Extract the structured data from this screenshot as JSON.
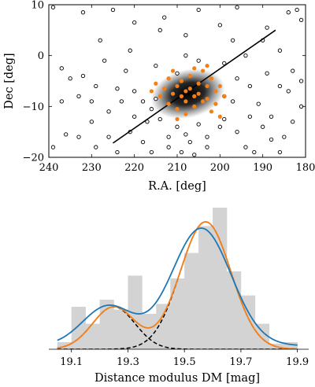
{
  "chart_data": [
    {
      "type": "scatter",
      "title": "",
      "xlabel": "R.A. [deg]",
      "ylabel": "Dec [deg]",
      "xlim": [
        240,
        180
      ],
      "ylim": [
        -20,
        10
      ],
      "x_inverted": true,
      "xticks": [
        240,
        230,
        220,
        210,
        200,
        190,
        180
      ],
      "xtick_labels": [
        "240",
        "230",
        "220",
        "210",
        "200",
        "190",
        "180"
      ],
      "yticks": [
        -20,
        -10,
        0,
        10
      ],
      "ytick_labels": [
        "−20",
        "−10",
        "0",
        "10"
      ],
      "grid": false,
      "colors": {
        "field": "#000000",
        "members": "#f47f17",
        "line": "#000000",
        "density": "#000000"
      },
      "density_blob": {
        "center": [
          207.5,
          -7.5
        ],
        "sigma_ra": 5.5,
        "sigma_dec": 2.5,
        "angle_deg": -14
      },
      "fit_line": {
        "x": [
          225,
          187
        ],
        "y": [
          -17.2,
          5
        ]
      },
      "series": [
        {
          "marker": "open-circle",
          "points": [
            [
              239,
              9.5
            ],
            [
              232,
              8.5
            ],
            [
              225,
              9
            ],
            [
              213,
              7.5
            ],
            [
              205,
              9
            ],
            [
              196,
              9.5
            ],
            [
              184,
              8.5
            ],
            [
              182,
              9
            ],
            [
              181,
              7
            ],
            [
              220,
              6.5
            ],
            [
              228,
              3
            ],
            [
              214,
              5
            ],
            [
              208,
              4
            ],
            [
              200,
              6
            ],
            [
              197,
              3
            ],
            [
              189,
              5.5
            ],
            [
              232,
              -4
            ],
            [
              237,
              -2.5
            ],
            [
              235,
              -4.5
            ],
            [
              222,
              -3
            ],
            [
              215,
              -2
            ],
            [
              208,
              0
            ],
            [
              205,
              -1
            ],
            [
              210,
              -3.5
            ],
            [
              199,
              -1.5
            ],
            [
              194,
              0
            ],
            [
              190,
              3
            ],
            [
              186,
              1
            ],
            [
              221,
              1
            ],
            [
              229,
              -6
            ],
            [
              224,
              -6.5
            ],
            [
              223,
              -9
            ],
            [
              226,
              -11
            ],
            [
              220,
              -12
            ],
            [
              230,
              -13
            ],
            [
              236,
              -15.5
            ],
            [
              233,
              -16
            ],
            [
              229,
              -18
            ],
            [
              226,
              -16
            ],
            [
              221,
              -15
            ],
            [
              217,
              -13
            ],
            [
              214,
              -12.5
            ],
            [
              210,
              -14
            ],
            [
              208,
              -15.5
            ],
            [
              205,
              -13.5
            ],
            [
              203,
              -16
            ],
            [
              200,
              -14
            ],
            [
              199,
              -12.5
            ],
            [
              196,
              -15
            ],
            [
              193,
              -12
            ],
            [
              191,
              -9.5
            ],
            [
              190,
              -14
            ],
            [
              188,
              -16.5
            ],
            [
              186,
              -19
            ],
            [
              185,
              -16
            ],
            [
              183,
              -13
            ],
            [
              181,
              -10
            ],
            [
              181,
              -5
            ],
            [
              183,
              -3
            ],
            [
              186,
              -6
            ],
            [
              189,
              -3.5
            ],
            [
              193,
              -6
            ],
            [
              196,
              -4.5
            ],
            [
              197,
              -9
            ],
            [
              199,
              -8
            ],
            [
              215,
              -8.5
            ],
            [
              216,
              -10.5
            ],
            [
              218,
              -9
            ],
            [
              220,
              -7
            ],
            [
              212,
              -18
            ],
            [
              209,
              -19
            ],
            [
              206,
              -19.5
            ],
            [
              203,
              -18
            ],
            [
              207,
              -17
            ],
            [
              212,
              -16
            ],
            [
              218,
              -17
            ],
            [
              216,
              -19
            ],
            [
              224,
              -19
            ],
            [
              230,
              -9
            ],
            [
              233,
              -8
            ],
            [
              227,
              -1
            ],
            [
              239,
              -18
            ],
            [
              194,
              -18
            ],
            [
              188,
              -12
            ],
            [
              184,
              -7
            ],
            [
              237,
              -9
            ],
            [
              192,
              -19
            ]
          ]
        },
        {
          "marker": "filled-circle",
          "points": [
            [
              215,
              -5.5
            ],
            [
              213,
              -6.5
            ],
            [
              212,
              -4.5
            ],
            [
              211,
              -7.5
            ],
            [
              210,
              -6
            ],
            [
              209,
              -8
            ],
            [
              209,
              -5
            ],
            [
              208,
              -7
            ],
            [
              208,
              -9
            ],
            [
              207,
              -4
            ],
            [
              207,
              -6.5
            ],
            [
              206,
              -8
            ],
            [
              206,
              -10
            ],
            [
              205,
              -5.5
            ],
            [
              205,
              -7.5
            ],
            [
              204,
              -3
            ],
            [
              204,
              -9
            ],
            [
              203,
              -6
            ],
            [
              203,
              -8.5
            ],
            [
              202,
              -4.5
            ],
            [
              202,
              -11
            ],
            [
              201,
              -7
            ],
            [
              201,
              -9.5
            ],
            [
              200,
              -6
            ],
            [
              200,
              -12
            ],
            [
              212,
              -9.5
            ],
            [
              210,
              -10.5
            ],
            [
              211,
              -3
            ],
            [
              214,
              -8
            ],
            [
              216,
              -7
            ],
            [
              206,
              -2.5
            ],
            [
              199,
              -8
            ],
            [
              203,
              -2
            ],
            [
              208,
              -11.5
            ],
            [
              210,
              -12.5
            ]
          ]
        }
      ]
    },
    {
      "type": "bar",
      "title": "",
      "xlabel": "Distance modulus DM [mag]",
      "ylabel": "",
      "xlim": [
        19.02,
        19.94
      ],
      "xticks": [
        19.1,
        19.3,
        19.5,
        19.7,
        19.9
      ],
      "xtick_labels": [
        "19.1",
        "19.3",
        "19.5",
        "19.7",
        "19.9"
      ],
      "ylim": [
        0,
        1
      ],
      "grid": false,
      "histogram": {
        "bin_edges": [
          19.05,
          19.1,
          19.15,
          19.2,
          19.25,
          19.3,
          19.35,
          19.4,
          19.45,
          19.5,
          19.55,
          19.6,
          19.65,
          19.7,
          19.75,
          19.8,
          19.85,
          19.9
        ],
        "heights": [
          0.05,
          0.3,
          0.18,
          0.35,
          0.28,
          0.52,
          0.25,
          0.32,
          0.5,
          0.68,
          0.87,
          1.0,
          0.55,
          0.38,
          0.18,
          0.04,
          0.05
        ],
        "color": "#d3d3d3"
      },
      "components": [
        {
          "mu": 19.25,
          "sigma": 0.075,
          "amp": 0.3,
          "style": "dashed",
          "color": "#000000"
        },
        {
          "mu": 19.575,
          "sigma": 0.09,
          "amp": 0.9,
          "style": "dashed",
          "color": "#000000"
        }
      ],
      "series": [
        {
          "style": "solid",
          "color": "#f47f17",
          "baseline": 0,
          "components": [
            [
              19.25,
              0.075,
              0.3
            ],
            [
              19.575,
              0.09,
              0.9
            ]
          ]
        },
        {
          "style": "solid",
          "color": "#1f77b4",
          "baseline": 0.025,
          "components": [
            [
              19.23,
              0.09,
              0.28
            ],
            [
              19.56,
              0.105,
              0.83
            ]
          ]
        }
      ]
    }
  ]
}
